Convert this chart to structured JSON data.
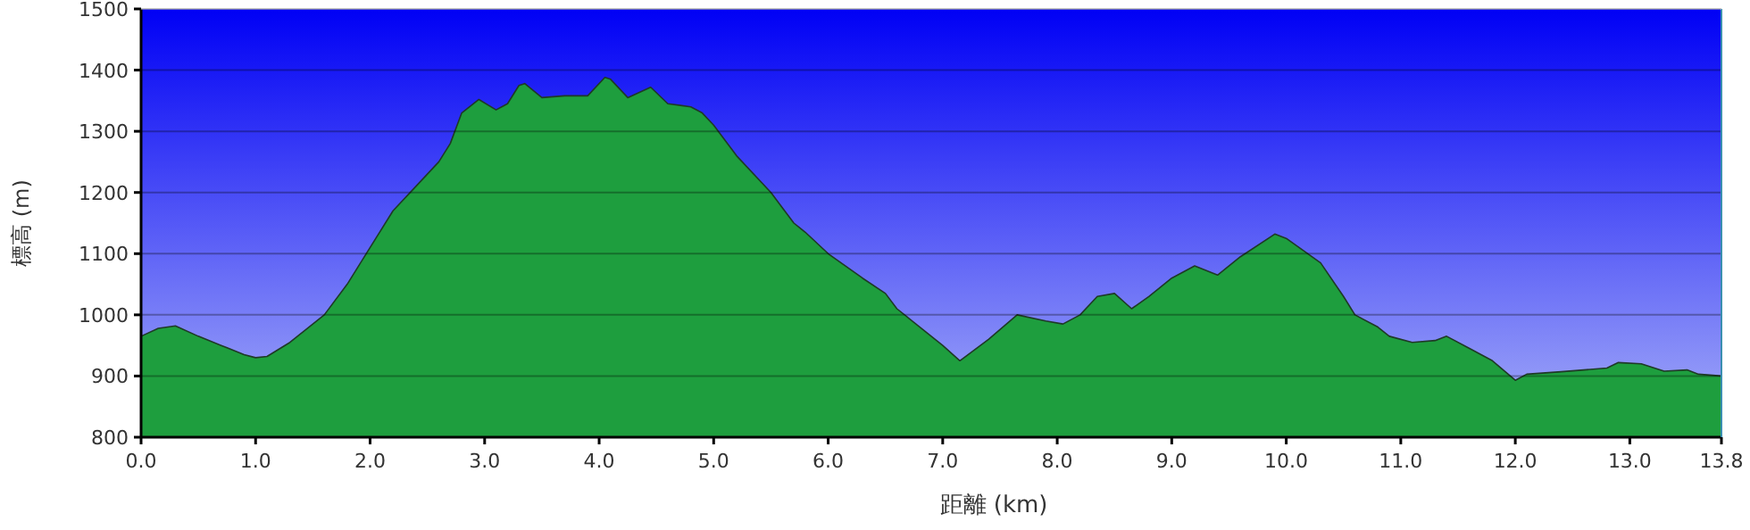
{
  "chart_data": {
    "type": "area",
    "xlabel": "距離 (km)",
    "ylabel": "標高 (m)",
    "xlim": [
      0,
      13.8
    ],
    "ylim": [
      800,
      1500
    ],
    "xticks": [
      {
        "value": 0,
        "label": "0.0"
      },
      {
        "value": 1,
        "label": "1.0"
      },
      {
        "value": 2,
        "label": "2.0"
      },
      {
        "value": 3,
        "label": "3.0"
      },
      {
        "value": 4,
        "label": "4.0"
      },
      {
        "value": 5,
        "label": "5.0"
      },
      {
        "value": 6,
        "label": "6.0"
      },
      {
        "value": 7,
        "label": "7.0"
      },
      {
        "value": 8,
        "label": "8.0"
      },
      {
        "value": 9,
        "label": "9.0"
      },
      {
        "value": 10,
        "label": "10.0"
      },
      {
        "value": 11,
        "label": "11.0"
      },
      {
        "value": 12,
        "label": "12.0"
      },
      {
        "value": 13,
        "label": "13.0"
      },
      {
        "value": 13.8,
        "label": "13.8"
      }
    ],
    "yticks": [
      800,
      900,
      1000,
      1100,
      1200,
      1300,
      1400,
      1500
    ],
    "grid": "y",
    "series": [
      {
        "color": "#1e9e3e",
        "x": [
          0,
          0.15,
          0.3,
          0.5,
          0.7,
          0.9,
          1.0,
          1.1,
          1.3,
          1.6,
          1.8,
          2.0,
          2.2,
          2.4,
          2.6,
          2.7,
          2.8,
          2.95,
          3.1,
          3.2,
          3.3,
          3.35,
          3.5,
          3.7,
          3.9,
          4.05,
          4.1,
          4.25,
          4.45,
          4.6,
          4.8,
          4.9,
          5.0,
          5.2,
          5.5,
          5.7,
          5.8,
          6.0,
          6.3,
          6.5,
          6.6,
          7.0,
          7.15,
          7.4,
          7.65,
          7.9,
          8.05,
          8.2,
          8.35,
          8.5,
          8.65,
          8.8,
          9.0,
          9.2,
          9.4,
          9.6,
          9.9,
          10.0,
          10.3,
          10.5,
          10.6,
          10.8,
          10.9,
          11.1,
          11.3,
          11.4,
          11.6,
          11.8,
          12.0,
          12.1,
          12.4,
          12.8,
          12.9,
          13.1,
          13.3,
          13.5,
          13.6,
          13.8
        ],
        "values": [
          965,
          978,
          982,
          965,
          950,
          935,
          930,
          932,
          955,
          1000,
          1050,
          1110,
          1170,
          1210,
          1250,
          1280,
          1330,
          1352,
          1335,
          1345,
          1375,
          1378,
          1355,
          1358,
          1358,
          1388,
          1385,
          1355,
          1372,
          1345,
          1340,
          1330,
          1310,
          1260,
          1200,
          1150,
          1135,
          1100,
          1060,
          1035,
          1010,
          950,
          925,
          960,
          1000,
          990,
          985,
          1000,
          1030,
          1035,
          1010,
          1030,
          1060,
          1080,
          1065,
          1095,
          1132,
          1125,
          1085,
          1030,
          1000,
          980,
          965,
          955,
          958,
          965,
          945,
          925,
          893,
          903,
          907,
          913,
          922,
          920,
          908,
          910,
          903,
          900
        ]
      }
    ]
  }
}
